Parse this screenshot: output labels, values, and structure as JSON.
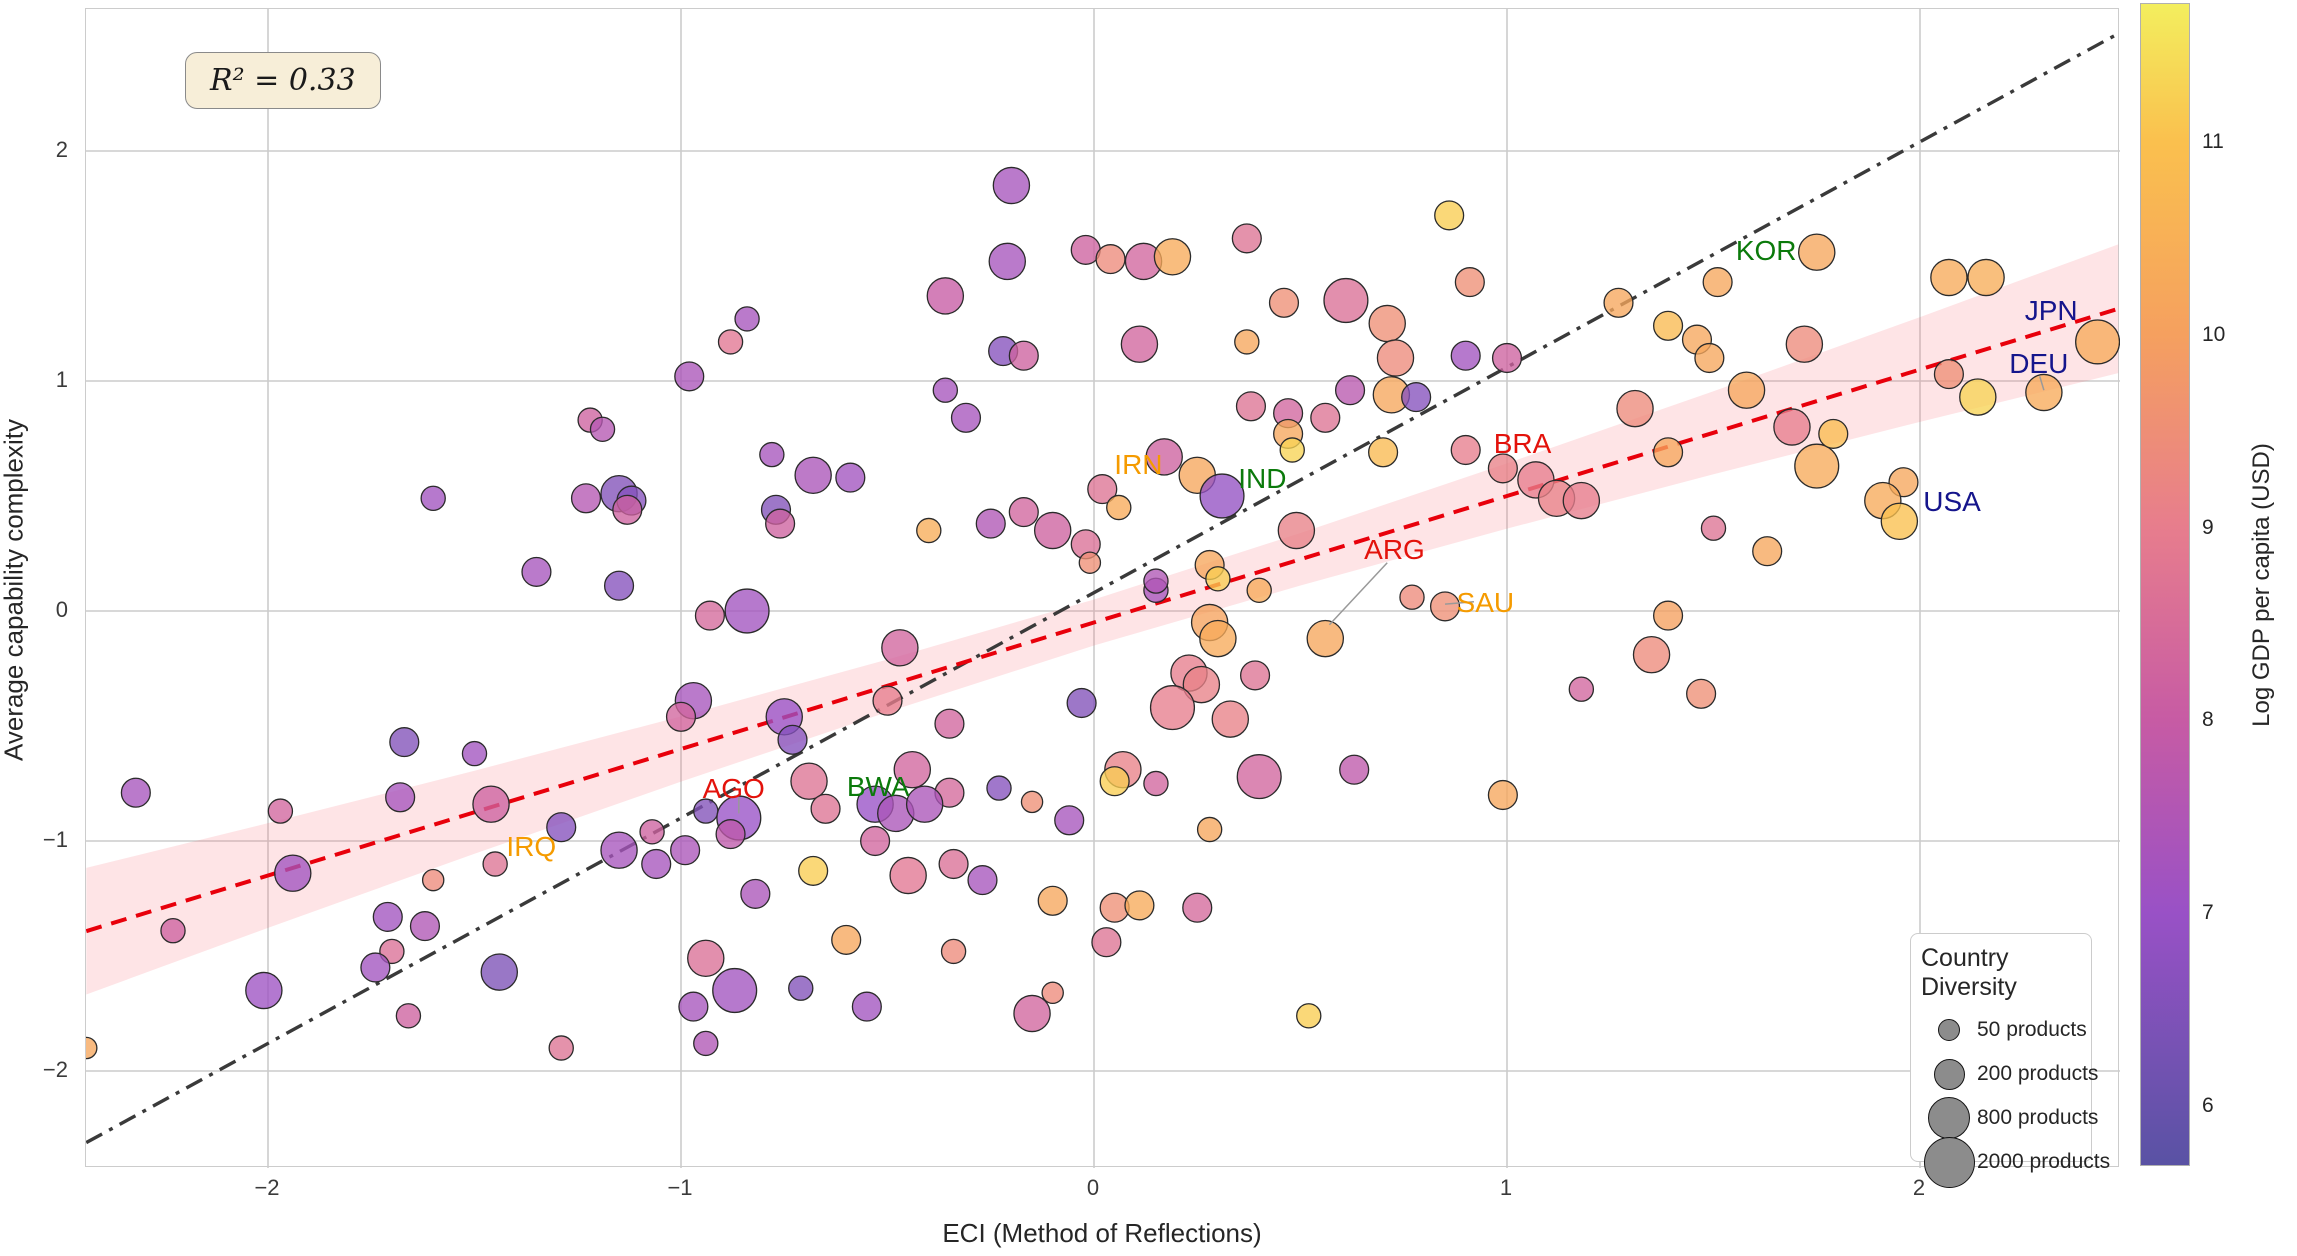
{
  "annotation": {
    "r2": "R² = 0.33"
  },
  "axes": {
    "xlabel": "ECI (Method of Reflections)",
    "ylabel": "Average capability complexity"
  },
  "legend": {
    "title": "Country Diversity",
    "entries": [
      {
        "label": "50 products",
        "products": 50
      },
      {
        "label": "200 products",
        "products": 200
      },
      {
        "label": "800 products",
        "products": 800
      },
      {
        "label": "2000 products",
        "products": 2000
      }
    ]
  },
  "colorbar": {
    "label": "Log GDP per capita (USD)",
    "vmin": 5.69,
    "vmax": 11.72,
    "ticks": [
      6,
      7,
      8,
      9,
      10,
      11
    ],
    "stops": [
      {
        "v": 5.69,
        "c": "#5952a4"
      },
      {
        "v": 7.0,
        "c": "#9951c6"
      },
      {
        "v": 8.0,
        "c": "#c75ba4"
      },
      {
        "v": 9.0,
        "c": "#e77d8d"
      },
      {
        "v": 10.0,
        "c": "#f5a05f"
      },
      {
        "v": 11.0,
        "c": "#fac04e"
      },
      {
        "v": 11.72,
        "c": "#f3ee5e"
      }
    ]
  },
  "chart_data": {
    "type": "scatter",
    "title": "",
    "xlabel": "ECI (Method of Reflections)",
    "ylabel": "Average capability complexity",
    "xlim": [
      -2.44,
      2.48
    ],
    "ylim": [
      -2.42,
      2.62
    ],
    "xticks": [
      -2,
      -1,
      0,
      1,
      2
    ],
    "yticks": [
      -2,
      -1,
      0,
      1,
      2
    ],
    "grid": true,
    "r_squared": 0.33,
    "regression_line": {
      "slope": 0.55,
      "intercept": -0.05,
      "color": "#e8000b",
      "style": "dashed"
    },
    "confidence_band": {
      "halfwidth_center": 0.1,
      "halfwidth_edge": 0.28,
      "color": "#f65a64",
      "opacity": 0.16
    },
    "identity_line": {
      "slope": 0.98,
      "intercept": 0.08,
      "color": "#3a3a3a",
      "style": "dashdot"
    },
    "size_encoding": "country diversity (number of products)",
    "color_encoding": "log GDP per capita (USD)",
    "country_labels": [
      {
        "code": "KOR",
        "x": 1.63,
        "y": 1.56,
        "color": "#0b7a0b"
      },
      {
        "code": "JPN",
        "x": 2.32,
        "y": 1.3,
        "color": "#15158c"
      },
      {
        "code": "DEU",
        "x": 2.29,
        "y": 1.07,
        "color": "#15158c"
      },
      {
        "code": "USA",
        "x": 2.08,
        "y": 0.47,
        "color": "#15158c"
      },
      {
        "code": "BRA",
        "x": 1.04,
        "y": 0.72,
        "color": "#e3120b"
      },
      {
        "code": "ARG",
        "x": 0.73,
        "y": 0.26,
        "color": "#e3120b"
      },
      {
        "code": "SAU",
        "x": 0.95,
        "y": 0.03,
        "color": "#f59b00"
      },
      {
        "code": "IRN",
        "x": 0.11,
        "y": 0.63,
        "color": "#f59b00"
      },
      {
        "code": "IND",
        "x": 0.41,
        "y": 0.57,
        "color": "#0b7a0b"
      },
      {
        "code": "AGO",
        "x": -0.87,
        "y": -0.78,
        "color": "#e3120b"
      },
      {
        "code": "BWA",
        "x": -0.52,
        "y": -0.77,
        "color": "#0b7a0b"
      },
      {
        "code": "IRQ",
        "x": -1.36,
        "y": -1.03,
        "color": "#f59b00"
      }
    ],
    "leader_lines": [
      {
        "x1": 0.71,
        "y1": 0.21,
        "x2": 0.57,
        "y2": -0.06
      },
      {
        "x1": 0.92,
        "y1": 0.04,
        "x2": 0.85,
        "y2": 0.03
      },
      {
        "x1": 2.29,
        "y1": 1.02,
        "x2": 2.3,
        "y2": 0.96
      },
      {
        "x1": -0.86,
        "y1": -0.81,
        "x2": -0.86,
        "y2": -0.88
      }
    ],
    "points": {
      "columns": [
        "x",
        "y",
        "diversity_products",
        "log_gdp_per_capita"
      ],
      "rows": [
        [
          -2.32,
          -0.79,
          300,
          7.3
        ],
        [
          -2.23,
          -1.39,
          130,
          8.2
        ],
        [
          -1.97,
          -0.87,
          130,
          8.3
        ],
        [
          -1.94,
          -1.14,
          700,
          7.2
        ],
        [
          -2.01,
          -1.65,
          700,
          7.1
        ],
        [
          -1.67,
          -0.57,
          300,
          6.5
        ],
        [
          -1.5,
          -0.62,
          130,
          7.2
        ],
        [
          -1.68,
          -0.81,
          300,
          7.3
        ],
        [
          -1.46,
          -0.84,
          700,
          8.2
        ],
        [
          -1.71,
          -1.33,
          300,
          7.2
        ],
        [
          -1.62,
          -1.37,
          300,
          7.5
        ],
        [
          -1.44,
          -1.57,
          700,
          6.4
        ],
        [
          -1.7,
          -1.48,
          130,
          8.6
        ],
        [
          -1.74,
          -1.55,
          300,
          7.2
        ],
        [
          -1.66,
          -1.76,
          130,
          8.2
        ],
        [
          -1.6,
          -1.17,
          60,
          9.4
        ],
        [
          -1.45,
          -1.1,
          130,
          8.7
        ],
        [
          -1.29,
          -0.94,
          300,
          6.6
        ],
        [
          -1.29,
          -1.9,
          130,
          8.7
        ],
        [
          -2.44,
          -1.9,
          60,
          10.2
        ],
        [
          -1.15,
          -1.04,
          700,
          7.3
        ],
        [
          -1.07,
          -0.96,
          130,
          8.2
        ],
        [
          -1.06,
          -1.1,
          300,
          7.3
        ],
        [
          -0.99,
          -1.04,
          300,
          7.4
        ],
        [
          -0.97,
          -0.39,
          700,
          7.3
        ],
        [
          -1.0,
          -0.46,
          300,
          8.3
        ],
        [
          -0.94,
          -0.87,
          130,
          6.5
        ],
        [
          -0.86,
          -0.9,
          1300,
          7.0
        ],
        [
          -0.88,
          -0.97,
          300,
          7.8
        ],
        [
          -0.82,
          -1.23,
          300,
          7.4
        ],
        [
          -0.94,
          -1.51,
          700,
          8.6
        ],
        [
          -0.87,
          -1.65,
          1300,
          7.2
        ],
        [
          -0.97,
          -1.72,
          300,
          7.3
        ],
        [
          -0.94,
          -1.88,
          130,
          7.5
        ],
        [
          -0.88,
          1.17,
          130,
          8.8
        ],
        [
          -0.98,
          1.02,
          300,
          7.4
        ],
        [
          -1.22,
          0.83,
          130,
          8.2
        ],
        [
          -1.19,
          0.79,
          130,
          7.6
        ],
        [
          -1.6,
          0.49,
          130,
          7.2
        ],
        [
          -1.15,
          0.51,
          700,
          6.5
        ],
        [
          -1.12,
          0.48,
          300,
          6.6
        ],
        [
          -1.13,
          0.44,
          300,
          8.2
        ],
        [
          -1.23,
          0.49,
          300,
          7.6
        ],
        [
          -1.35,
          0.17,
          300,
          7.3
        ],
        [
          -1.15,
          0.11,
          300,
          6.6
        ],
        [
          -0.93,
          -0.02,
          300,
          8.4
        ],
        [
          -0.84,
          0.0,
          1300,
          7.2
        ],
        [
          -0.84,
          1.27,
          130,
          7.3
        ],
        [
          -0.2,
          1.85,
          700,
          7.3
        ],
        [
          -0.21,
          1.52,
          700,
          7.3
        ],
        [
          -0.36,
          1.37,
          700,
          8.0
        ],
        [
          -0.02,
          1.57,
          300,
          8.2
        ],
        [
          0.04,
          1.53,
          300,
          9.4
        ],
        [
          0.12,
          1.52,
          700,
          8.3
        ],
        [
          0.19,
          1.54,
          700,
          10.3
        ],
        [
          0.37,
          1.62,
          300,
          8.7
        ],
        [
          0.86,
          1.72,
          300,
          11.2
        ],
        [
          -0.22,
          1.13,
          300,
          6.6
        ],
        [
          -0.17,
          1.11,
          300,
          8.2
        ],
        [
          0.11,
          1.16,
          700,
          8.3
        ],
        [
          0.38,
          0.89,
          300,
          8.7
        ],
        [
          0.37,
          1.17,
          130,
          10.2
        ],
        [
          0.46,
          1.34,
          300,
          9.5
        ],
        [
          0.61,
          1.35,
          1300,
          8.6
        ],
        [
          0.71,
          1.25,
          700,
          9.5
        ],
        [
          0.73,
          1.1,
          700,
          9.4
        ],
        [
          0.62,
          0.96,
          300,
          7.7
        ],
        [
          0.72,
          0.94,
          700,
          10.2
        ],
        [
          0.47,
          0.86,
          300,
          8.3
        ],
        [
          0.47,
          0.77,
          300,
          10.2
        ],
        [
          0.48,
          0.7,
          130,
          11.3
        ],
        [
          0.56,
          0.84,
          300,
          8.7
        ],
        [
          -0.36,
          0.96,
          130,
          7.3
        ],
        [
          -0.31,
          0.84,
          300,
          7.3
        ],
        [
          -0.68,
          0.59,
          700,
          7.4
        ],
        [
          -0.59,
          0.58,
          300,
          7.2
        ],
        [
          -0.78,
          0.68,
          130,
          7.3
        ],
        [
          -0.77,
          0.44,
          300,
          6.5
        ],
        [
          -0.76,
          0.38,
          300,
          8.2
        ],
        [
          -0.4,
          0.35,
          130,
          10.4
        ],
        [
          -0.25,
          0.38,
          300,
          7.5
        ],
        [
          -0.17,
          0.43,
          300,
          8.3
        ],
        [
          -0.1,
          0.35,
          700,
          8.2
        ],
        [
          -0.02,
          0.29,
          300,
          8.6
        ],
        [
          0.02,
          0.53,
          300,
          8.7
        ],
        [
          0.06,
          0.45,
          130,
          10.3
        ],
        [
          0.17,
          0.67,
          700,
          8.2
        ],
        [
          0.25,
          0.59,
          700,
          10.2
        ],
        [
          0.31,
          0.5,
          1300,
          6.9
        ],
        [
          -0.01,
          0.21,
          60,
          9.5
        ],
        [
          0.15,
          0.09,
          130,
          7.3
        ],
        [
          0.15,
          0.13,
          130,
          7.5
        ],
        [
          0.49,
          0.35,
          700,
          9.1
        ],
        [
          0.28,
          0.2,
          300,
          10.2
        ],
        [
          0.3,
          0.14,
          130,
          11.2
        ],
        [
          0.4,
          0.09,
          130,
          10.3
        ],
        [
          0.7,
          0.69,
          300,
          10.8
        ],
        [
          -0.47,
          -0.16,
          700,
          8.3
        ],
        [
          -0.5,
          -0.39,
          300,
          9.0
        ],
        [
          -0.75,
          -0.46,
          700,
          7.0
        ],
        [
          -0.73,
          -0.56,
          300,
          6.6
        ],
        [
          -0.35,
          -0.49,
          300,
          8.3
        ],
        [
          -0.03,
          -0.4,
          300,
          6.5
        ],
        [
          -0.69,
          -0.74,
          700,
          8.7
        ],
        [
          -0.44,
          -0.69,
          700,
          8.3
        ],
        [
          -0.65,
          -0.86,
          300,
          8.7
        ],
        [
          -0.53,
          -0.84,
          700,
          7.0
        ],
        [
          -0.48,
          -0.88,
          700,
          7.4
        ],
        [
          -0.35,
          -0.79,
          300,
          8.4
        ],
        [
          -0.41,
          -0.84,
          700,
          7.4
        ],
        [
          -0.23,
          -0.77,
          130,
          6.6
        ],
        [
          -0.15,
          -0.83,
          60,
          9.5
        ],
        [
          -0.06,
          -0.91,
          300,
          7.3
        ],
        [
          -0.53,
          -1.0,
          300,
          8.3
        ],
        [
          -0.68,
          -1.13,
          300,
          11.2
        ],
        [
          -0.45,
          -1.15,
          700,
          8.8
        ],
        [
          -0.34,
          -1.1,
          300,
          8.6
        ],
        [
          -0.27,
          -1.17,
          300,
          7.3
        ],
        [
          -0.6,
          -1.43,
          300,
          10.2
        ],
        [
          -0.34,
          -1.48,
          130,
          9.4
        ],
        [
          -0.71,
          -1.64,
          130,
          6.5
        ],
        [
          -0.55,
          -1.72,
          300,
          7.2
        ],
        [
          -0.15,
          -1.75,
          700,
          8.3
        ],
        [
          -0.1,
          -1.66,
          60,
          9.4
        ],
        [
          -0.1,
          -1.26,
          300,
          10.2
        ],
        [
          0.05,
          -1.29,
          300,
          9.5
        ],
        [
          0.11,
          -1.28,
          300,
          10.3
        ],
        [
          0.25,
          -1.29,
          300,
          8.4
        ],
        [
          0.03,
          -1.44,
          300,
          8.7
        ],
        [
          0.52,
          -1.76,
          130,
          11.2
        ],
        [
          0.28,
          -0.95,
          130,
          10.2
        ],
        [
          0.07,
          -0.69,
          700,
          9.1
        ],
        [
          0.05,
          -0.74,
          300,
          11.2
        ],
        [
          0.15,
          -0.75,
          130,
          8.3
        ],
        [
          0.28,
          -0.05,
          700,
          10.1
        ],
        [
          0.3,
          -0.12,
          700,
          10.3
        ],
        [
          0.56,
          -0.12,
          700,
          10.2
        ],
        [
          0.23,
          -0.27,
          700,
          9.0
        ],
        [
          0.26,
          -0.32,
          700,
          9.1
        ],
        [
          0.19,
          -0.42,
          1300,
          9.0
        ],
        [
          0.33,
          -0.47,
          700,
          9.1
        ],
        [
          0.39,
          -0.28,
          300,
          8.7
        ],
        [
          0.4,
          -0.72,
          1300,
          8.3
        ],
        [
          0.63,
          -0.69,
          300,
          7.8
        ],
        [
          1.35,
          -0.19,
          700,
          9.4
        ],
        [
          1.18,
          -0.34,
          130,
          8.3
        ],
        [
          1.47,
          -0.36,
          300,
          9.5
        ],
        [
          0.99,
          -0.8,
          300,
          10.2
        ],
        [
          0.91,
          1.43,
          300,
          9.5
        ],
        [
          1.51,
          1.43,
          300,
          10.2
        ],
        [
          1.27,
          1.34,
          300,
          10.2
        ],
        [
          1.75,
          1.56,
          700,
          10.2
        ],
        [
          2.07,
          1.45,
          700,
          10.3
        ],
        [
          2.16,
          1.45,
          700,
          10.4
        ],
        [
          1.39,
          1.24,
          300,
          10.8
        ],
        [
          1.46,
          1.18,
          300,
          10.2
        ],
        [
          1.49,
          1.1,
          300,
          10.2
        ],
        [
          1.72,
          1.16,
          700,
          9.4
        ],
        [
          2.07,
          1.03,
          300,
          9.5
        ],
        [
          1.69,
          0.8,
          700,
          9.0
        ],
        [
          2.14,
          0.93,
          700,
          11.3
        ],
        [
          2.3,
          0.95,
          700,
          10.3
        ],
        [
          2.43,
          1.17,
          1300,
          10.3
        ],
        [
          0.9,
          1.11,
          300,
          7.2
        ],
        [
          1.0,
          1.1,
          300,
          8.2
        ],
        [
          0.78,
          0.93,
          300,
          6.6
        ],
        [
          0.9,
          0.7,
          300,
          9.0
        ],
        [
          0.99,
          0.62,
          300,
          9.1
        ],
        [
          1.07,
          0.57,
          700,
          9.0
        ],
        [
          1.12,
          0.49,
          700,
          9.1
        ],
        [
          1.18,
          0.48,
          700,
          9.0
        ],
        [
          1.31,
          0.88,
          700,
          9.4
        ],
        [
          1.39,
          0.69,
          300,
          10.2
        ],
        [
          1.58,
          0.96,
          700,
          10.2
        ],
        [
          1.75,
          0.63,
          1300,
          10.3
        ],
        [
          1.79,
          0.77,
          300,
          10.9
        ],
        [
          1.96,
          0.56,
          300,
          10.2
        ],
        [
          1.91,
          0.48,
          700,
          10.3
        ],
        [
          1.95,
          0.39,
          700,
          11.0
        ],
        [
          1.5,
          0.36,
          130,
          8.7
        ],
        [
          1.63,
          0.26,
          300,
          10.2
        ],
        [
          0.85,
          0.02,
          300,
          9.5
        ],
        [
          0.77,
          0.06,
          130,
          9.4
        ],
        [
          1.39,
          -0.02,
          300,
          10.0
        ]
      ]
    }
  }
}
